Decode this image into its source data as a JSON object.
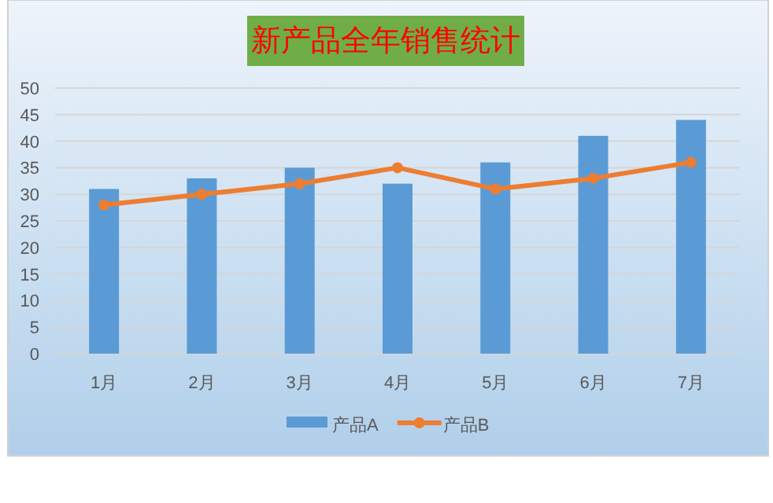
{
  "chart_data": {
    "type": "bar",
    "title": "新产品全年销售统计",
    "categories": [
      "1月",
      "2月",
      "3月",
      "4月",
      "5月",
      "6月",
      "7月"
    ],
    "series": [
      {
        "name": "产品A",
        "color": "#5b9bd5",
        "values": [
          31,
          33,
          35,
          32,
          36,
          41,
          44
        ]
      },
      {
        "name": "产品B",
        "type": "line",
        "color": "#ed7d31",
        "marker": "circle",
        "values": [
          28,
          30,
          32,
          35,
          31,
          33,
          36
        ]
      }
    ],
    "ylim": [
      0,
      50
    ],
    "yticks": [
      0,
      5,
      10,
      15,
      20,
      25,
      30,
      35,
      40,
      45,
      50
    ],
    "grid": "y",
    "legend": "bottom"
  }
}
